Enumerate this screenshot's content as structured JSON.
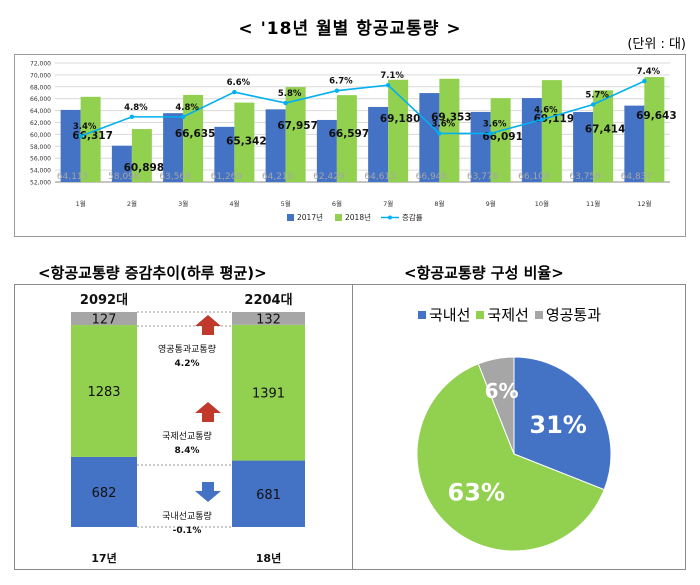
{
  "title": "< '18년 월별 항공교통량 >",
  "unit": "(단위 : 대)",
  "colors": {
    "y2017": "#4472c4",
    "y2018": "#92d050",
    "growth": "#00b0f0",
    "transit": "#a6a6a6"
  },
  "chart_data": [
    {
      "type": "bar",
      "categories": [
        "1월",
        "2월",
        "3월",
        "4월",
        "5월",
        "6월",
        "7월",
        "8월",
        "9월",
        "10월",
        "11월",
        "12월"
      ],
      "series": [
        {
          "name": "2017년",
          "values": [
            64115,
            58098,
            63569,
            61269,
            64210,
            62429,
            64613,
            66946,
            63776,
            66109,
            63758,
            64837
          ],
          "labels": [
            "64,115",
            "58,098",
            "63,569",
            "61,269",
            "64,210",
            "62,429",
            "64,613",
            "66,946",
            "63,776",
            "66,109",
            "63,758",
            "64,837"
          ]
        },
        {
          "name": "2018년",
          "values": [
            66317,
            60898,
            66635,
            65342,
            67957,
            66597,
            69180,
            69353,
            66091,
            69119,
            67414,
            69643
          ],
          "labels": [
            "66,317",
            "60,898",
            "66,635",
            "65,342",
            "67,957",
            "66,597",
            "69,180",
            "69,353",
            "66,091",
            "69,119",
            "67,414",
            "69,643"
          ]
        },
        {
          "name": "증감률",
          "type": "line",
          "values": [
            3.4,
            4.8,
            4.8,
            6.6,
            5.8,
            6.7,
            7.1,
            3.6,
            3.6,
            4.6,
            5.7,
            7.4
          ],
          "labels": [
            "3.4%",
            "4.8%",
            "4.8%",
            "6.6%",
            "5.8%",
            "6.7%",
            "7.1%",
            "3.6%",
            "3.6%",
            "4.6%",
            "5.7%",
            "7.4%"
          ]
        }
      ],
      "ylim": [
        52000,
        72000
      ],
      "yticks": [
        "52,000",
        "54,000",
        "56,000",
        "58,000",
        "60,000",
        "62,000",
        "64,000",
        "66,000",
        "68,000",
        "70,000",
        "72,000"
      ],
      "legend": "bottom",
      "grid": true
    },
    {
      "type": "bar",
      "stacked": true,
      "title": "<항공교통량 증감추이(하루 평균)>",
      "categories": [
        "17년",
        "18년"
      ],
      "totals": [
        "2092대",
        "2204대"
      ],
      "series": [
        {
          "name": "국내선",
          "values": [
            682,
            681
          ]
        },
        {
          "name": "국제선",
          "values": [
            1283,
            1391
          ]
        },
        {
          "name": "영공통과",
          "values": [
            127,
            132
          ]
        }
      ],
      "annotations": [
        {
          "label": "영공통과교통량",
          "value": "4.2%",
          "direction": "up"
        },
        {
          "label": "국제선교통량",
          "value": "8.4%",
          "direction": "up"
        },
        {
          "label": "국내선교통량",
          "value": "-0.1%",
          "direction": "down"
        }
      ]
    },
    {
      "type": "pie",
      "title": "<항공교통량 구성 비율>",
      "legend": "top",
      "slices": [
        {
          "name": "국내선",
          "value": 31,
          "label": "31%"
        },
        {
          "name": "국제선",
          "value": 63,
          "label": "63%"
        },
        {
          "name": "영공통과",
          "value": 6,
          "label": "6%"
        }
      ]
    }
  ]
}
